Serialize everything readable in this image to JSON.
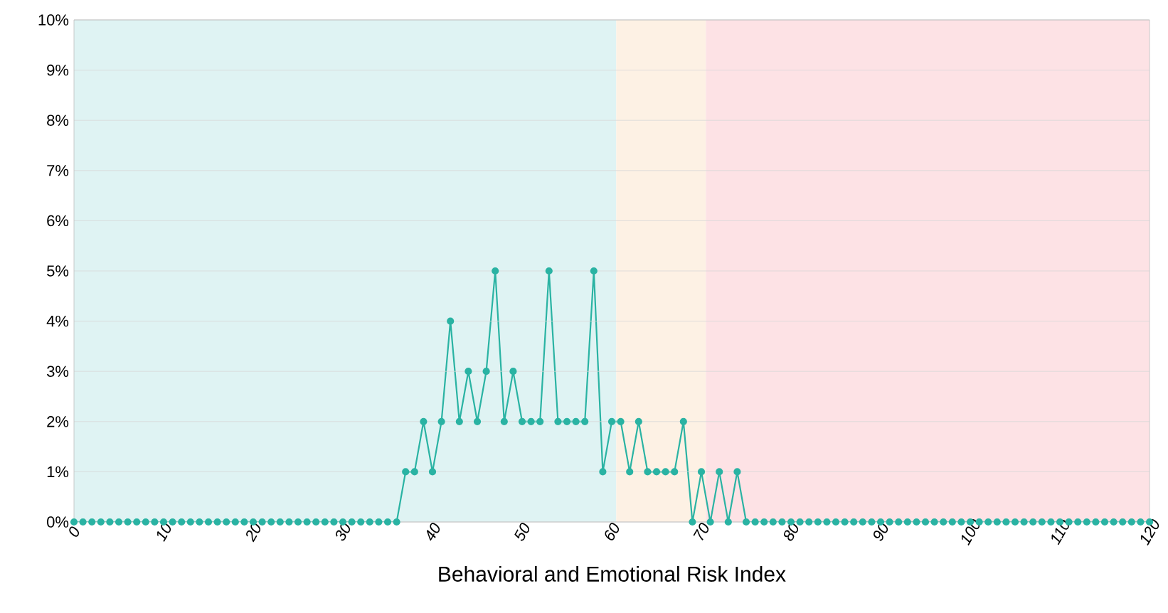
{
  "chart_data": {
    "type": "line",
    "xlabel": "Behavioral and Emotional Risk Index",
    "x": [
      0,
      1,
      2,
      3,
      4,
      5,
      6,
      7,
      8,
      9,
      10,
      11,
      12,
      13,
      14,
      15,
      16,
      17,
      18,
      19,
      20,
      21,
      22,
      23,
      24,
      25,
      26,
      27,
      28,
      29,
      30,
      31,
      32,
      33,
      34,
      35,
      36,
      37,
      38,
      39,
      40,
      41,
      42,
      43,
      44,
      45,
      46,
      47,
      48,
      49,
      50,
      51,
      52,
      53,
      54,
      55,
      56,
      57,
      58,
      59,
      60,
      61,
      62,
      63,
      64,
      65,
      66,
      67,
      68,
      69,
      70,
      71,
      72,
      73,
      74,
      75,
      76,
      77,
      78,
      79,
      80,
      81,
      82,
      83,
      84,
      85,
      86,
      87,
      88,
      89,
      90,
      91,
      92,
      93,
      94,
      95,
      96,
      97,
      98,
      99,
      100,
      101,
      102,
      103,
      104,
      105,
      106,
      107,
      108,
      109,
      110,
      111,
      112,
      113,
      114,
      115,
      116,
      117,
      118,
      119,
      120
    ],
    "series": [
      {
        "color": "#2ab3a3",
        "values": [
          0,
          0,
          0,
          0,
          0,
          0,
          0,
          0,
          0,
          0,
          0,
          0,
          0,
          0,
          0,
          0,
          0,
          0,
          0,
          0,
          0,
          0,
          0,
          0,
          0,
          0,
          0,
          0,
          0,
          0,
          0,
          0,
          0,
          0,
          0,
          0,
          0,
          1,
          1,
          2,
          1,
          2,
          4,
          2,
          3,
          2,
          3,
          5,
          2,
          3,
          2,
          2,
          2,
          5,
          2,
          2,
          2,
          2,
          5,
          1,
          2,
          2,
          1,
          2,
          1,
          1,
          1,
          1,
          2,
          0,
          1,
          0,
          1,
          0,
          1,
          0,
          0,
          0,
          0,
          0,
          0,
          0,
          0,
          0,
          0,
          0,
          0,
          0,
          0,
          0,
          0,
          0,
          0,
          0,
          0,
          0,
          0,
          0,
          0,
          0,
          0,
          0,
          0,
          0,
          0,
          0,
          0,
          0,
          0,
          0,
          0,
          0,
          0,
          0,
          0,
          0,
          0,
          0,
          0,
          0,
          0
        ]
      }
    ],
    "xlim": [
      0,
      120
    ],
    "xticks": [
      0,
      10,
      20,
      30,
      40,
      50,
      60,
      70,
      80,
      90,
      100,
      110,
      120
    ],
    "ylim": [
      0,
      10
    ],
    "yticks": [
      {
        "value": 0,
        "label": "0%"
      },
      {
        "value": 1,
        "label": "1%"
      },
      {
        "value": 2,
        "label": "2%"
      },
      {
        "value": 3,
        "label": "3%"
      },
      {
        "value": 4,
        "label": "4%"
      },
      {
        "value": 5,
        "label": "5%"
      },
      {
        "value": 6,
        "label": "6%"
      },
      {
        "value": 7,
        "label": "7%"
      },
      {
        "value": 8,
        "label": "8%"
      },
      {
        "value": 9,
        "label": "9%"
      },
      {
        "value": 10,
        "label": "10%"
      }
    ],
    "bands": [
      {
        "axis": "x",
        "from": 0,
        "to": 60.5,
        "color": "#dff3f3"
      },
      {
        "axis": "x",
        "from": 60.5,
        "to": 70.5,
        "color": "#fdf1e4"
      },
      {
        "axis": "x",
        "from": 70.5,
        "to": 120,
        "color": "#fde2e5"
      }
    ],
    "grid": "y",
    "legend": false,
    "marker": "circle",
    "line_style": "solid"
  }
}
